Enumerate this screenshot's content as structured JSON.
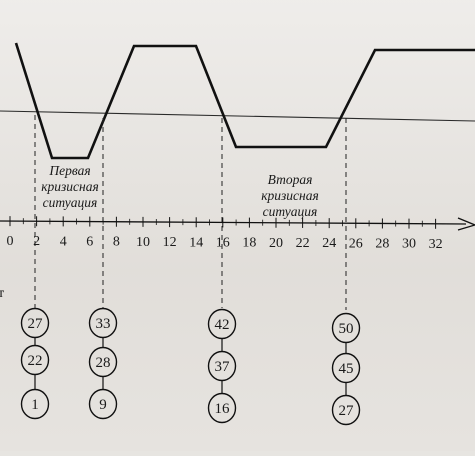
{
  "axis": {
    "ticks": [
      "0",
      "2",
      "4",
      "6",
      "8",
      "10",
      "12",
      "14",
      "16",
      "18",
      "20",
      "22",
      "24",
      "26",
      "28",
      "30",
      "32"
    ]
  },
  "situations": [
    {
      "lines": [
        "Первая",
        "кризисная",
        "ситуация"
      ]
    },
    {
      "lines": [
        "Вторая",
        "кризисная",
        "ситуация"
      ]
    }
  ],
  "node_columns": [
    {
      "nodes": [
        "27",
        "22",
        "1"
      ]
    },
    {
      "nodes": [
        "33",
        "28",
        "9"
      ]
    },
    {
      "nodes": [
        "42",
        "37",
        "16"
      ]
    },
    {
      "nodes": [
        "50",
        "45",
        "27"
      ]
    }
  ],
  "stray_text": "т",
  "colors": {
    "ink": "#1a1a1a",
    "paper": "#e6e3df"
  }
}
